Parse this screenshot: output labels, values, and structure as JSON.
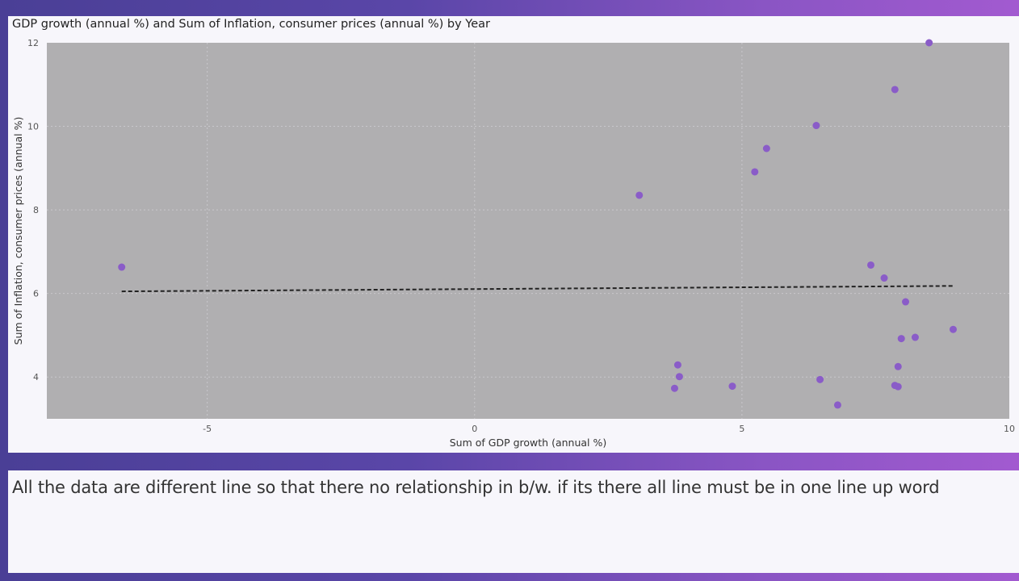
{
  "chart_data": {
    "type": "scatter",
    "title": "GDP growth (annual %) and Sum of Inflation, consumer prices (annual %) by Year",
    "xlabel": "Sum of GDP growth (annual %)",
    "ylabel": "Sum of Inflation, consumer prices (annual %)",
    "xlim": [
      -8,
      10
    ],
    "ylim": [
      3,
      12
    ],
    "xticks": [
      -5,
      0,
      5,
      10
    ],
    "yticks": [
      4,
      6,
      8,
      10,
      12
    ],
    "grid": true,
    "series": [
      {
        "color": "#8a5cc8",
        "points": [
          {
            "x": -6.6,
            "y": 6.63
          },
          {
            "x": 3.08,
            "y": 8.35
          },
          {
            "x": 3.74,
            "y": 3.73
          },
          {
            "x": 3.8,
            "y": 4.29
          },
          {
            "x": 3.83,
            "y": 4.01
          },
          {
            "x": 4.82,
            "y": 3.78
          },
          {
            "x": 5.24,
            "y": 8.91
          },
          {
            "x": 5.46,
            "y": 9.47
          },
          {
            "x": 6.39,
            "y": 10.02
          },
          {
            "x": 6.46,
            "y": 3.94
          },
          {
            "x": 6.79,
            "y": 3.33
          },
          {
            "x": 7.41,
            "y": 6.68
          },
          {
            "x": 7.66,
            "y": 6.37
          },
          {
            "x": 7.86,
            "y": 3.8
          },
          {
            "x": 7.86,
            "y": 10.88
          },
          {
            "x": 7.92,
            "y": 3.77
          },
          {
            "x": 7.92,
            "y": 4.25
          },
          {
            "x": 7.98,
            "y": 4.92
          },
          {
            "x": 8.06,
            "y": 5.8
          },
          {
            "x": 8.24,
            "y": 4.95
          },
          {
            "x": 8.5,
            "y": 12.0
          },
          {
            "x": 8.95,
            "y": 5.14
          }
        ]
      }
    ],
    "trendline": {
      "style": "dashed",
      "color": "#222222",
      "x": [
        -6.6,
        8.95
      ],
      "y": [
        6.05,
        6.18
      ]
    }
  },
  "comment": "All the data are different line so that there no relationship in b/w. if its there all line must be in one line up word",
  "colors": {
    "plot_bg": "#b0afb1",
    "panel_bg": "#f7f6fb",
    "marker": "#8a5cc8",
    "trend": "#222222"
  }
}
